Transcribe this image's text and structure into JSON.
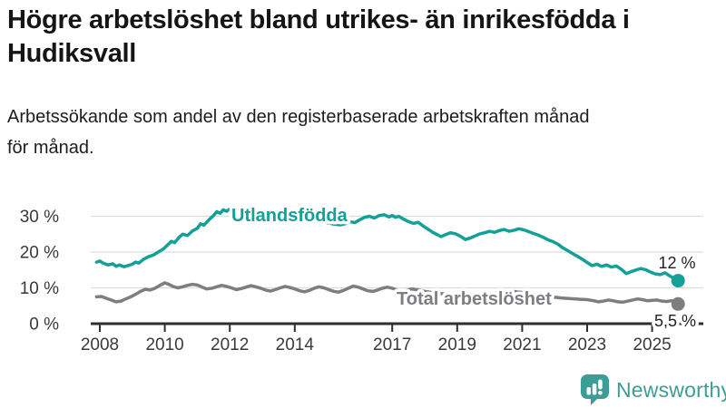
{
  "title": {
    "line1": "Högre arbetslöshet bland utrikes- än inrikesfödda i",
    "line2": "Hudiksvall"
  },
  "subtitle": {
    "line1": "Arbetssökande som andel av den registerbaserade arbetskraften månad",
    "line2": "för månad."
  },
  "branding": {
    "name": "Newsworthy",
    "color": "#3C9D97",
    "icon": "bar-chart-speech-bubble-icon"
  },
  "chart_data": {
    "type": "line",
    "title": "Högre arbetslöshet bland utrikes- än inrikesfödda i Hudiksvall",
    "subtitle": "Arbetssökande som andel av den registerbaserade arbetskraften månad för månad.",
    "xlabel": "",
    "ylabel": "",
    "ylim": [
      0,
      33
    ],
    "xlim": [
      2007.9,
      2026.4
    ],
    "grid": "horizontal",
    "legend_position": "inline-labels",
    "axis_color": "#2f2f2f",
    "grid_color": "#dcdcdc",
    "y_ticks": [
      {
        "value": 30,
        "label": "30 %"
      },
      {
        "value": 20,
        "label": "20 %"
      },
      {
        "value": 10,
        "label": "10 %"
      },
      {
        "value": 0,
        "label": "0 %"
      }
    ],
    "x_ticks": [
      {
        "value": 2008,
        "label": "2008"
      },
      {
        "value": 2010,
        "label": "2010"
      },
      {
        "value": 2012,
        "label": "2012"
      },
      {
        "value": 2014,
        "label": "2014"
      },
      {
        "value": 2017,
        "label": "2017"
      },
      {
        "value": 2019,
        "label": "2019"
      },
      {
        "value": 2021,
        "label": "2021"
      },
      {
        "value": 2023,
        "label": "2023"
      },
      {
        "value": 2025,
        "label": "2025"
      }
    ],
    "series": [
      {
        "name": "Utlandsfödda",
        "color": "#14A096",
        "end_label": "12 %",
        "end_value": 12,
        "points": [
          [
            2007.9,
            17.2
          ],
          [
            2008.0,
            17.5
          ],
          [
            2008.1,
            16.9
          ],
          [
            2008.25,
            16.4
          ],
          [
            2008.4,
            16.7
          ],
          [
            2008.5,
            16.0
          ],
          [
            2008.6,
            16.4
          ],
          [
            2008.75,
            15.9
          ],
          [
            2008.9,
            16.3
          ],
          [
            2009.0,
            16.6
          ],
          [
            2009.1,
            17.2
          ],
          [
            2009.2,
            16.9
          ],
          [
            2009.35,
            18.0
          ],
          [
            2009.5,
            18.7
          ],
          [
            2009.65,
            19.2
          ],
          [
            2009.8,
            20.0
          ],
          [
            2009.95,
            20.8
          ],
          [
            2010.1,
            22.1
          ],
          [
            2010.2,
            23.0
          ],
          [
            2010.3,
            22.6
          ],
          [
            2010.45,
            24.2
          ],
          [
            2010.55,
            25.0
          ],
          [
            2010.7,
            24.6
          ],
          [
            2010.85,
            25.9
          ],
          [
            2011.0,
            26.6
          ],
          [
            2011.1,
            27.9
          ],
          [
            2011.2,
            27.5
          ],
          [
            2011.35,
            28.9
          ],
          [
            2011.5,
            30.2
          ],
          [
            2011.6,
            31.3
          ],
          [
            2011.7,
            30.8
          ],
          [
            2011.8,
            31.8
          ],
          [
            2011.9,
            31.4
          ],
          [
            2012.0,
            32.0
          ],
          [
            2012.1,
            31.5
          ],
          [
            2012.25,
            31.8
          ],
          [
            2012.4,
            31.2
          ],
          [
            2012.6,
            30.8
          ],
          [
            2012.8,
            31.1
          ],
          [
            2013.0,
            30.5
          ],
          [
            2013.2,
            30.0
          ],
          [
            2013.4,
            30.3
          ],
          [
            2013.6,
            29.6
          ],
          [
            2013.8,
            29.9
          ],
          [
            2014.0,
            29.3
          ],
          [
            2014.2,
            28.9
          ],
          [
            2014.4,
            29.2
          ],
          [
            2014.6,
            28.5
          ],
          [
            2014.8,
            28.8
          ],
          [
            2015.0,
            28.2
          ],
          [
            2015.2,
            27.8
          ],
          [
            2015.4,
            27.6
          ],
          [
            2015.55,
            27.9
          ],
          [
            2015.7,
            28.5
          ],
          [
            2015.85,
            28.2
          ],
          [
            2016.0,
            29.0
          ],
          [
            2016.15,
            29.7
          ],
          [
            2016.3,
            30.0
          ],
          [
            2016.45,
            29.5
          ],
          [
            2016.6,
            30.2
          ],
          [
            2016.75,
            30.4
          ],
          [
            2016.9,
            29.8
          ],
          [
            2017.0,
            30.2
          ],
          [
            2017.1,
            29.7
          ],
          [
            2017.2,
            30.0
          ],
          [
            2017.35,
            29.2
          ],
          [
            2017.5,
            28.5
          ],
          [
            2017.65,
            28.0
          ],
          [
            2017.8,
            28.3
          ],
          [
            2017.95,
            27.3
          ],
          [
            2018.1,
            26.4
          ],
          [
            2018.25,
            25.5
          ],
          [
            2018.4,
            24.8
          ],
          [
            2018.5,
            24.3
          ],
          [
            2018.65,
            24.9
          ],
          [
            2018.8,
            25.4
          ],
          [
            2018.95,
            25.1
          ],
          [
            2019.1,
            24.4
          ],
          [
            2019.25,
            23.5
          ],
          [
            2019.4,
            23.9
          ],
          [
            2019.55,
            24.5
          ],
          [
            2019.7,
            25.1
          ],
          [
            2019.85,
            25.4
          ],
          [
            2020.0,
            25.8
          ],
          [
            2020.15,
            25.5
          ],
          [
            2020.3,
            26.0
          ],
          [
            2020.45,
            26.3
          ],
          [
            2020.6,
            25.8
          ],
          [
            2020.75,
            26.1
          ],
          [
            2020.9,
            26.5
          ],
          [
            2021.05,
            26.2
          ],
          [
            2021.2,
            25.7
          ],
          [
            2021.35,
            25.2
          ],
          [
            2021.5,
            24.7
          ],
          [
            2021.65,
            24.1
          ],
          [
            2021.8,
            23.4
          ],
          [
            2021.95,
            22.9
          ],
          [
            2022.1,
            22.2
          ],
          [
            2022.25,
            21.2
          ],
          [
            2022.4,
            20.4
          ],
          [
            2022.55,
            19.6
          ],
          [
            2022.7,
            18.8
          ],
          [
            2022.85,
            18.0
          ],
          [
            2023.0,
            17.1
          ],
          [
            2023.15,
            16.2
          ],
          [
            2023.3,
            16.6
          ],
          [
            2023.45,
            16.0
          ],
          [
            2023.6,
            16.4
          ],
          [
            2023.75,
            15.8
          ],
          [
            2023.9,
            16.1
          ],
          [
            2024.05,
            15.2
          ],
          [
            2024.2,
            14.0
          ],
          [
            2024.35,
            14.5
          ],
          [
            2024.5,
            15.0
          ],
          [
            2024.65,
            15.4
          ],
          [
            2024.8,
            15.1
          ],
          [
            2024.95,
            14.4
          ],
          [
            2025.1,
            13.9
          ],
          [
            2025.25,
            13.7
          ],
          [
            2025.4,
            14.2
          ],
          [
            2025.55,
            13.3
          ],
          [
            2025.7,
            12.5
          ],
          [
            2025.8,
            12.0
          ]
        ]
      },
      {
        "name": "Total arbetslöshet",
        "color": "#7d7d82",
        "end_label": "5,5 %",
        "end_value": 5.5,
        "points": [
          [
            2007.9,
            7.5
          ],
          [
            2008.05,
            7.6
          ],
          [
            2008.2,
            7.1
          ],
          [
            2008.35,
            6.6
          ],
          [
            2008.5,
            6.1
          ],
          [
            2008.65,
            6.3
          ],
          [
            2008.8,
            6.9
          ],
          [
            2008.95,
            7.5
          ],
          [
            2009.1,
            8.2
          ],
          [
            2009.25,
            9.0
          ],
          [
            2009.4,
            9.6
          ],
          [
            2009.55,
            9.4
          ],
          [
            2009.7,
            9.9
          ],
          [
            2009.85,
            10.7
          ],
          [
            2010.0,
            11.4
          ],
          [
            2010.1,
            11.1
          ],
          [
            2010.25,
            10.4
          ],
          [
            2010.4,
            10.0
          ],
          [
            2010.55,
            10.3
          ],
          [
            2010.7,
            10.7
          ],
          [
            2010.85,
            11.0
          ],
          [
            2011.0,
            10.8
          ],
          [
            2011.15,
            10.2
          ],
          [
            2011.3,
            9.7
          ],
          [
            2011.45,
            9.9
          ],
          [
            2011.6,
            10.3
          ],
          [
            2011.75,
            10.7
          ],
          [
            2011.9,
            10.4
          ],
          [
            2012.05,
            10.0
          ],
          [
            2012.2,
            9.5
          ],
          [
            2012.35,
            9.8
          ],
          [
            2012.5,
            10.2
          ],
          [
            2012.65,
            10.6
          ],
          [
            2012.8,
            10.3
          ],
          [
            2012.95,
            9.9
          ],
          [
            2013.1,
            9.4
          ],
          [
            2013.25,
            9.1
          ],
          [
            2013.4,
            9.5
          ],
          [
            2013.55,
            10.0
          ],
          [
            2013.7,
            10.4
          ],
          [
            2013.85,
            10.1
          ],
          [
            2014.0,
            9.7
          ],
          [
            2014.15,
            9.2
          ],
          [
            2014.3,
            8.9
          ],
          [
            2014.45,
            9.3
          ],
          [
            2014.6,
            9.9
          ],
          [
            2014.75,
            10.3
          ],
          [
            2014.9,
            10.0
          ],
          [
            2015.05,
            9.5
          ],
          [
            2015.2,
            9.0
          ],
          [
            2015.35,
            8.8
          ],
          [
            2015.5,
            9.3
          ],
          [
            2015.65,
            9.9
          ],
          [
            2015.8,
            10.5
          ],
          [
            2015.95,
            10.2
          ],
          [
            2016.1,
            9.7
          ],
          [
            2016.25,
            9.2
          ],
          [
            2016.4,
            9.0
          ],
          [
            2016.55,
            9.4
          ],
          [
            2016.7,
            9.9
          ],
          [
            2016.85,
            10.2
          ],
          [
            2017.0,
            9.9
          ],
          [
            2017.15,
            9.4
          ],
          [
            2017.3,
            9.1
          ],
          [
            2017.45,
            9.4
          ],
          [
            2017.6,
            9.7
          ],
          [
            2017.8,
            9.4
          ],
          [
            2018.0,
            9.0
          ],
          [
            2018.3,
            8.6
          ],
          [
            2018.6,
            8.3
          ],
          [
            2018.9,
            8.1
          ],
          [
            2019.2,
            7.9
          ],
          [
            2019.5,
            7.8
          ],
          [
            2019.8,
            8.0
          ],
          [
            2020.1,
            8.4
          ],
          [
            2020.4,
            8.8
          ],
          [
            2020.7,
            9.0
          ],
          [
            2021.0,
            8.7
          ],
          [
            2021.3,
            8.3
          ],
          [
            2021.6,
            7.9
          ],
          [
            2021.9,
            7.5
          ],
          [
            2022.2,
            7.2
          ],
          [
            2022.5,
            7.0
          ],
          [
            2022.8,
            6.8
          ],
          [
            2023.0,
            6.7
          ],
          [
            2023.2,
            6.4
          ],
          [
            2023.35,
            6.1
          ],
          [
            2023.5,
            6.3
          ],
          [
            2023.65,
            6.6
          ],
          [
            2023.8,
            6.4
          ],
          [
            2023.95,
            6.1
          ],
          [
            2024.1,
            6.0
          ],
          [
            2024.25,
            6.3
          ],
          [
            2024.4,
            6.6
          ],
          [
            2024.55,
            6.9
          ],
          [
            2024.7,
            6.7
          ],
          [
            2024.85,
            6.4
          ],
          [
            2025.0,
            6.5
          ],
          [
            2025.15,
            6.6
          ],
          [
            2025.3,
            6.3
          ],
          [
            2025.45,
            6.2
          ],
          [
            2025.6,
            6.4
          ],
          [
            2025.7,
            6.1
          ],
          [
            2025.8,
            5.5
          ]
        ]
      }
    ]
  }
}
